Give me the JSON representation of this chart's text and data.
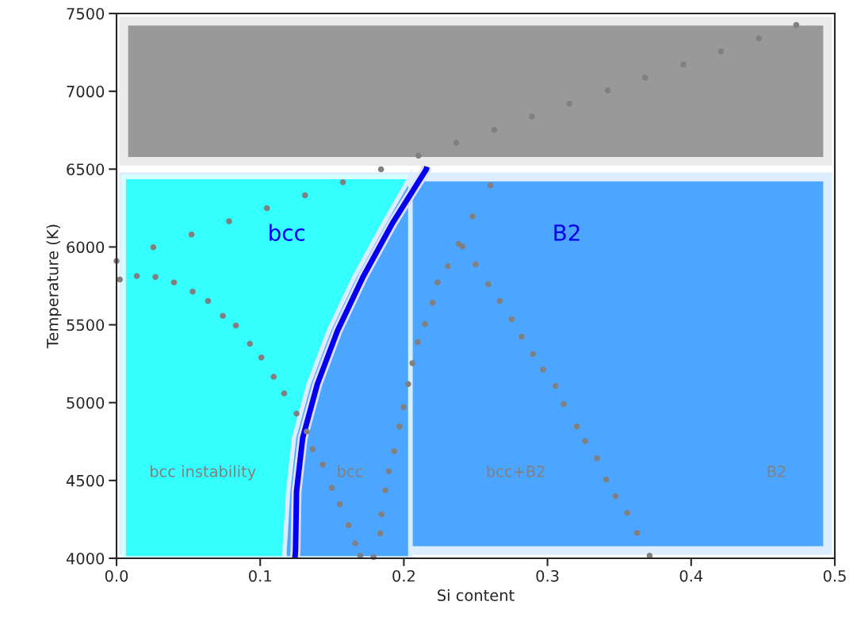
{
  "chart_data": {
    "type": "scatter",
    "xlabel": "Si content",
    "ylabel": "Temperature (K)",
    "xlim": [
      0,
      0.5
    ],
    "xticks": [
      {
        "value": 0,
        "label": "0.0"
      },
      0.1,
      0.2,
      0.3,
      0.4,
      0.5
    ],
    "ylim": [
      4000,
      7500
    ],
    "yticks": [
      4000,
      4500,
      5000,
      5500,
      6000,
      6500,
      7000,
      7500
    ],
    "grid": false,
    "legend": false,
    "bands": [
      {
        "axis": "y",
        "from": 6550,
        "to": 7450,
        "color": "#999999"
      },
      {
        "axis": "y",
        "from": 4050,
        "to": 6450,
        "color": "#4ca6ff"
      }
    ],
    "series": [
      {
        "type": "area",
        "color": "#33ffff",
        "x": [
          0.005,
          0.2045
        ],
        "values": [
          6450,
          6450
        ]
      },
      {
        "type": "area",
        "color": "#4ca6ff",
        "x": [
          0.117,
          0.1195,
          0.1236,
          0.1338,
          0.1479,
          0.1656,
          0.1861,
          0.2045
        ],
        "values": [
          4050,
          4430,
          4774,
          5119,
          5464,
          5808,
          6153,
          6450
        ]
      },
      {
        "color": "#808080",
        "marker": "circle",
        "x": [
          0,
          0.0256,
          0.0522,
          0.0783,
          0.1047,
          0.1312,
          0.1576,
          0.1841,
          0.2102,
          0.2365,
          0.2629,
          0.2892,
          0.3153,
          0.3419,
          0.368,
          0.3946,
          0.4207,
          0.4471,
          0.4732
        ],
        "values": [
          5910,
          5998,
          6080,
          6165,
          6249,
          6332,
          6416,
          6499,
          6587,
          6669,
          6752,
          6837,
          6920,
          7005,
          7088,
          7172,
          7257,
          7340,
          7426
        ]
      },
      {
        "color": "#808080",
        "marker": "circle",
        "x": [
          0.0023,
          0.0141,
          0.0271,
          0.04,
          0.053,
          0.0637,
          0.074,
          0.0831,
          0.0928,
          0.1008,
          0.1094,
          0.1167,
          0.1253,
          0.1324,
          0.1365,
          0.1436,
          0.1499,
          0.1555,
          0.1615,
          0.1662,
          0.1697
        ],
        "values": [
          5791,
          5813,
          5807,
          5772,
          5713,
          5653,
          5558,
          5495,
          5378,
          5290,
          5166,
          5059,
          4929,
          4814,
          4701,
          4602,
          4452,
          4347,
          4213,
          4096,
          4016
        ]
      },
      {
        "color": "#808080",
        "marker": "circle",
        "x": [
          0.2381,
          0.2306,
          0.2235,
          0.22,
          0.2147,
          0.2097,
          0.206,
          0.203,
          0.1998,
          0.197,
          0.1933,
          0.1895,
          0.1871,
          0.1845,
          0.1836,
          0.1789
        ],
        "values": [
          6020,
          5877,
          5772,
          5641,
          5505,
          5389,
          5253,
          5119,
          4971,
          4847,
          4688,
          4559,
          4437,
          4282,
          4160,
          4008
        ]
      },
      {
        "color": "#808080",
        "marker": "circle",
        "x": [
          0.2603,
          0.2478,
          0.2408,
          0.25,
          0.2588,
          0.2668,
          0.275,
          0.2821,
          0.29,
          0.2969,
          0.3056,
          0.3112,
          0.3204,
          0.3262,
          0.3345,
          0.3409,
          0.3474,
          0.3555,
          0.3624,
          0.3711
        ],
        "values": [
          6396,
          6196,
          6003,
          5888,
          5760,
          5653,
          5536,
          5424,
          5312,
          5212,
          5107,
          4990,
          4847,
          4752,
          4642,
          4505,
          4399,
          4292,
          4163,
          4016
        ]
      },
      {
        "type": "line",
        "color": "#0000ee",
        "line_style": "solid",
        "x": [
          0.1242,
          0.1246,
          0.1253,
          0.1296,
          0.1398,
          0.1539,
          0.1716,
          0.1921,
          0.2155,
          0.2161
        ],
        "values": [
          4000,
          4051,
          4430,
          4774,
          5119,
          5464,
          5808,
          6153,
          6497,
          6515
        ]
      }
    ],
    "annotations": [
      "bcc",
      "B2",
      "bcc instability",
      "bcc",
      "bcc+B2",
      "B2"
    ]
  }
}
